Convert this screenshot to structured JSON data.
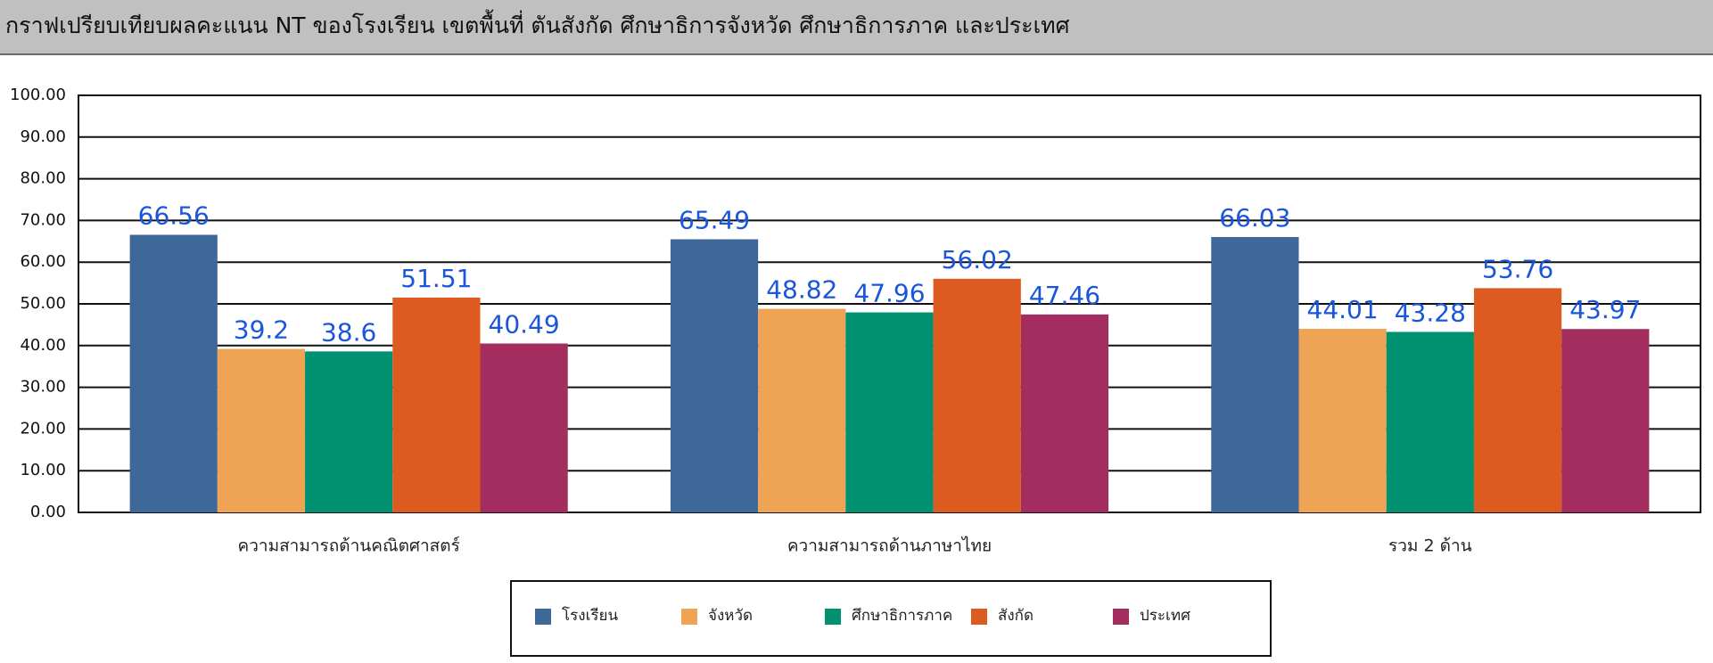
{
  "chart_data": {
    "type": "bar",
    "title": "กราฟเปรียบเทียบผลคะแนน NT ของโรงเรียน เขตพื้นที่  ตันสังกัด ศึกษาธิการจังหวัด ศึกษาธิการภาค และประเทศ",
    "categories": [
      "ความสามารถด้านคณิตศาสตร์",
      "ความสามารถด้านภาษาไทย",
      "รวม 2 ด้าน"
    ],
    "series": [
      {
        "name": "โรงเรียน",
        "color": "#3d6898",
        "values": [
          66.56,
          65.49,
          66.03
        ]
      },
      {
        "name": "จังหวัด",
        "color": "#eea454",
        "values": [
          39.2,
          48.82,
          44.01
        ]
      },
      {
        "name": "ศึกษาธิการภาค",
        "color": "#009270",
        "values": [
          38.6,
          47.96,
          43.28
        ]
      },
      {
        "name": "สังกัด",
        "color": "#dd5a21",
        "values": [
          51.51,
          56.02,
          53.76
        ]
      },
      {
        "name": "ประเทศ",
        "color": "#a22d5e",
        "values": [
          40.49,
          47.46,
          43.97
        ]
      }
    ],
    "ylim": [
      0,
      100
    ],
    "yticks": [
      {
        "value": 0,
        "label": "0.00"
      },
      {
        "value": 10,
        "label": "10.00"
      },
      {
        "value": 20,
        "label": "20.00"
      },
      {
        "value": 30,
        "label": "30.00"
      },
      {
        "value": 40,
        "label": "40.00"
      },
      {
        "value": 50,
        "label": "50.00"
      },
      {
        "value": 60,
        "label": "60.00"
      },
      {
        "value": 70,
        "label": "70.00"
      },
      {
        "value": 80,
        "label": "80.00"
      },
      {
        "value": 90,
        "label": "90.00"
      },
      {
        "value": 100,
        "label": "100.00"
      }
    ],
    "grid": true,
    "legend": "bottom"
  }
}
